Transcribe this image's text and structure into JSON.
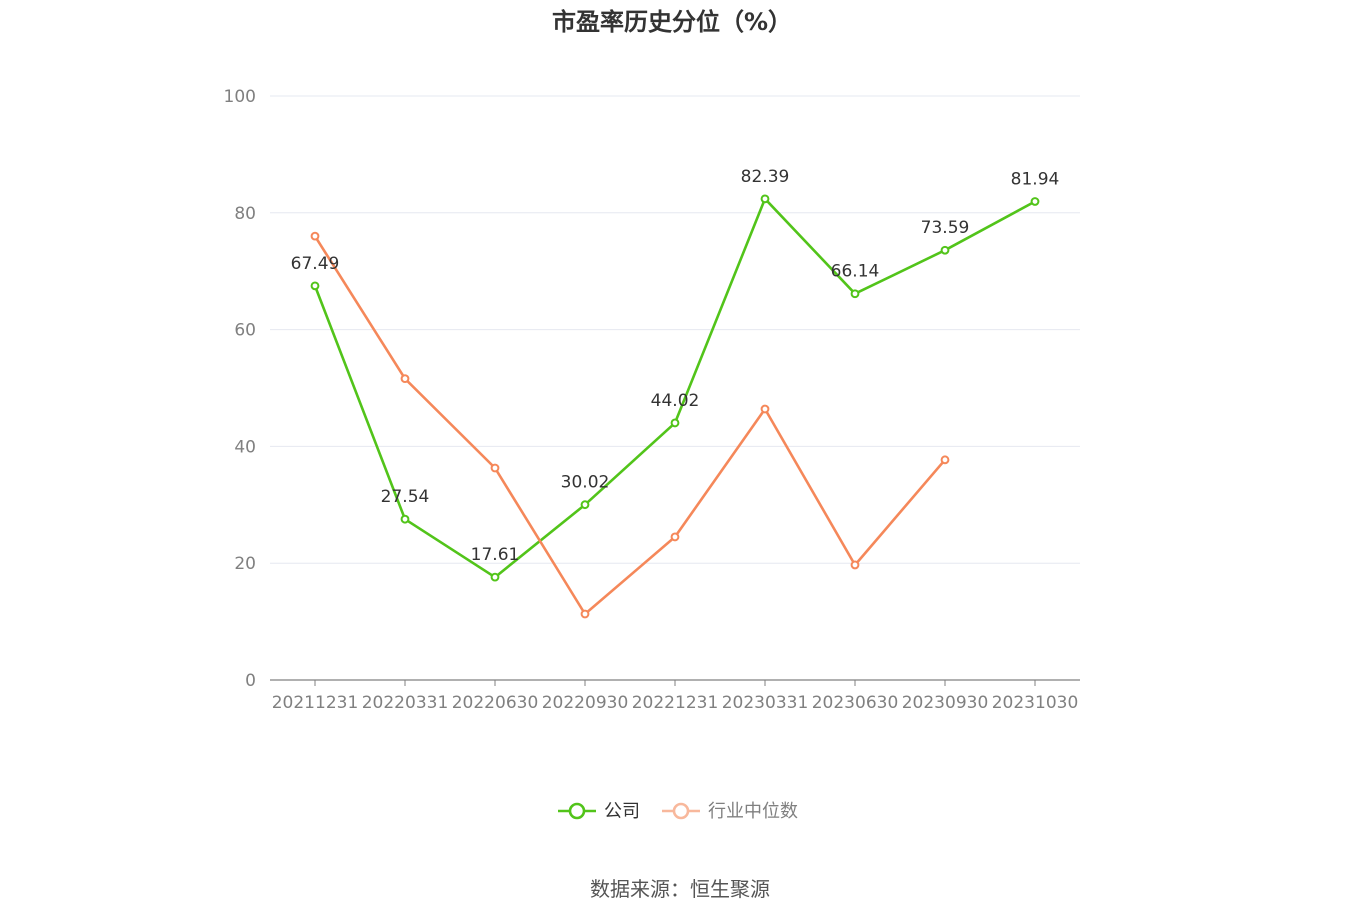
{
  "chart_data": {
    "type": "line",
    "title": "市盈率历史分位（%）",
    "categories": [
      "20211231",
      "20220331",
      "20220630",
      "20220930",
      "20221231",
      "20230331",
      "20230630",
      "20230930",
      "20231030"
    ],
    "ylim": [
      0,
      100
    ],
    "yticks": [
      0,
      20,
      40,
      60,
      80,
      100
    ],
    "grid": true,
    "legend_position": "bottom",
    "series": [
      {
        "name": "公司",
        "color": "#52c41a",
        "values": [
          67.49,
          27.54,
          17.61,
          30.02,
          44.02,
          82.39,
          66.14,
          73.59,
          81.94
        ],
        "labels": [
          "67.49",
          "27.54",
          "17.61",
          "30.02",
          "44.02",
          "82.39",
          "66.14",
          "73.59",
          "81.94"
        ]
      },
      {
        "name": "行业中位数",
        "color": "#f5885a",
        "values": [
          76.0,
          51.6,
          36.3,
          11.3,
          24.5,
          46.4,
          19.7,
          37.7,
          null
        ]
      }
    ]
  },
  "source": "数据来源：恒生聚源"
}
